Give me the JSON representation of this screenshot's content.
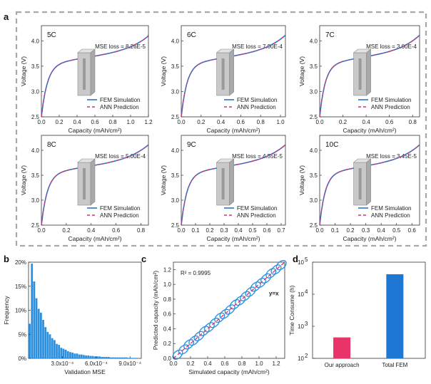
{
  "chart_data": [
    {
      "panel": "a",
      "type": "line",
      "subplots": [
        {
          "title": "5C",
          "xlabel": "Capacity (mAh/cm²)",
          "ylabel": "Voltage (V)",
          "xlim": [
            0,
            1.2
          ],
          "ylim": [
            2.5,
            4.3
          ],
          "xticks": [
            "0.0",
            "0.2",
            "0.4",
            "0.6",
            "0.8",
            "1.0",
            "1.2"
          ],
          "yticks": [
            "2.5",
            "3.0",
            "3.5",
            "4.0"
          ],
          "mse_label": "MSE loss = 8.26E-5",
          "series": [
            {
              "name": "FEM Simulation",
              "color": "#1f77d4",
              "style": "solid"
            },
            {
              "name": "ANN Prediction",
              "color": "#d6336c",
              "style": "dashed"
            }
          ],
          "legend": "bottom-right",
          "cap_max": 1.21
        },
        {
          "title": "6C",
          "xlabel": "Capacity (mAh/cm²)",
          "ylabel": "Voltage (V)",
          "xlim": [
            0,
            1.05
          ],
          "ylim": [
            2.5,
            4.3
          ],
          "xticks": [
            "0.0",
            "0.2",
            "0.4",
            "0.6",
            "0.8",
            "1.0"
          ],
          "yticks": [
            "2.5",
            "3.0",
            "3.5",
            "4.0"
          ],
          "mse_label": "MSE loss = 7.00E-4",
          "series": [
            {
              "name": "FEM Simulation",
              "color": "#1f77d4",
              "style": "solid"
            },
            {
              "name": "ANN Prediction",
              "color": "#d6336c",
              "style": "dashed"
            }
          ],
          "legend": "bottom-right",
          "cap_max": 1.05
        },
        {
          "title": "7C",
          "xlabel": "Capacity (mAh/cm²)",
          "ylabel": "Voltage (V)",
          "xlim": [
            0,
            0.86
          ],
          "ylim": [
            2.5,
            4.3
          ],
          "xticks": [
            "0.0",
            "0.2",
            "0.4",
            "0.6",
            "0.8"
          ],
          "yticks": [
            "2.5",
            "3.0",
            "3.5",
            "4.0"
          ],
          "mse_label": "MSE loss = 3.00E-4",
          "series": [
            {
              "name": "FEM Simulation",
              "color": "#1f77d4",
              "style": "solid"
            },
            {
              "name": "ANN Prediction",
              "color": "#d6336c",
              "style": "dashed"
            }
          ],
          "legend": "bottom-right",
          "cap_max": 0.86
        },
        {
          "title": "8C",
          "xlabel": "Capacity (mAh/cm²)",
          "ylabel": "Voltage (V)",
          "xlim": [
            0,
            0.86
          ],
          "ylim": [
            2.5,
            4.3
          ],
          "xticks": [
            "0.0",
            "0.2",
            "0.4",
            "0.6",
            "0.8"
          ],
          "yticks": [
            "2.5",
            "3.0",
            "3.5",
            "4.0"
          ],
          "mse_label": "MSE loss = 5.00E-4",
          "series": [
            {
              "name": "FEM Simulation",
              "color": "#1f77d4",
              "style": "solid"
            },
            {
              "name": "ANN Prediction",
              "color": "#d6336c",
              "style": "dashed"
            }
          ],
          "legend": "bottom-right",
          "cap_max": 0.86
        },
        {
          "title": "9C",
          "xlabel": "Capacity (mAh/cm²)",
          "ylabel": "Voltage (V)",
          "xlim": [
            0,
            0.73
          ],
          "ylim": [
            2.5,
            4.3
          ],
          "xticks": [
            "0.0",
            "0.1",
            "0.2",
            "0.3",
            "0.4",
            "0.5",
            "0.6",
            "0.7"
          ],
          "yticks": [
            "2.5",
            "3.0",
            "3.5",
            "4.0"
          ],
          "mse_label": "MSE loss = 4.55E-5",
          "series": [
            {
              "name": "FEM Simulation",
              "color": "#1f77d4",
              "style": "solid"
            },
            {
              "name": "ANN Prediction",
              "color": "#d6336c",
              "style": "dashed"
            }
          ],
          "legend": "bottom-right",
          "cap_max": 0.73
        },
        {
          "title": "10C",
          "xlabel": "Capacity (mAh/cm²)",
          "ylabel": "Voltage (V)",
          "xlim": [
            0,
            0.65
          ],
          "ylim": [
            2.5,
            4.3
          ],
          "xticks": [
            "0.0",
            "0.1",
            "0.2",
            "0.3",
            "0.4",
            "0.5",
            "0.6"
          ],
          "yticks": [
            "2.5",
            "3.0",
            "3.5",
            "4.0"
          ],
          "mse_label": "MSE loss = 3.45E-5",
          "series": [
            {
              "name": "FEM Simulation",
              "color": "#1f77d4",
              "style": "solid"
            },
            {
              "name": "ANN Prediction",
              "color": "#d6336c",
              "style": "dashed"
            }
          ],
          "legend": "bottom-right",
          "cap_max": 0.65
        }
      ]
    },
    {
      "panel": "b",
      "type": "bar",
      "xlabel": "Validation MSE",
      "ylabel": "Frequency",
      "xlim": [
        0,
        0.001
      ],
      "ylim": [
        0,
        0.2
      ],
      "xticks": [
        {
          "value": 0.0003,
          "label": "3.0x10⁻⁴"
        },
        {
          "value": 0.0006,
          "label": "6.0x10⁻⁴"
        },
        {
          "value": 0.0009,
          "label": "9.0x10⁻⁴"
        }
      ],
      "yticks": [
        "0%",
        "5%",
        "10%",
        "15%",
        "20%"
      ],
      "bin_width": 2e-05,
      "x_start": 1e-05,
      "values": [
        0.072,
        0.197,
        0.16,
        0.125,
        0.103,
        0.095,
        0.08,
        0.065,
        0.055,
        0.05,
        0.042,
        0.038,
        0.03,
        0.028,
        0.022,
        0.02,
        0.018,
        0.015,
        0.013,
        0.012,
        0.01,
        0.01,
        0.008,
        0.008,
        0.007,
        0.006,
        0.006,
        0.005,
        0.005,
        0.004,
        0.004,
        0.004,
        0.003,
        0.003,
        0.003,
        0.003,
        0.002,
        0.002,
        0.002,
        0.002,
        0.002,
        0.002,
        0.002,
        0.002,
        0.001,
        0.001,
        0.001,
        0.001
      ],
      "color": "#2b8fe0"
    },
    {
      "panel": "c",
      "type": "scatter",
      "xlabel": "Simulated capacity (mAh/cm²)",
      "ylabel": "Predicted capacity (mAh/cm²)",
      "xlim": [
        0,
        1.3
      ],
      "ylim": [
        0,
        1.3
      ],
      "xticks": [
        "0.0",
        "0.2",
        "0.4",
        "0.6",
        "0.8",
        "1.0",
        "1.2"
      ],
      "yticks": [
        "0.0",
        "0.2",
        "0.4",
        "0.6",
        "0.8",
        "1.0",
        "1.2"
      ],
      "r2_label": "R² = 0.9995",
      "line_label": "y=x",
      "line_color": "#d6336c",
      "point_color": "#2b8fe0",
      "points": [
        [
          0.05,
          0.05
        ],
        [
          0.12,
          0.12
        ],
        [
          0.18,
          0.19
        ],
        [
          0.24,
          0.24
        ],
        [
          0.3,
          0.3
        ],
        [
          0.36,
          0.37
        ],
        [
          0.42,
          0.42
        ],
        [
          0.48,
          0.48
        ],
        [
          0.54,
          0.55
        ],
        [
          0.6,
          0.6
        ],
        [
          0.66,
          0.66
        ],
        [
          0.72,
          0.73
        ],
        [
          0.78,
          0.78
        ],
        [
          0.84,
          0.84
        ],
        [
          0.9,
          0.9
        ],
        [
          0.96,
          0.97
        ],
        [
          1.02,
          1.02
        ],
        [
          1.08,
          1.08
        ],
        [
          1.14,
          1.15
        ],
        [
          1.2,
          1.2
        ],
        [
          1.26,
          1.26
        ]
      ]
    },
    {
      "panel": "d",
      "type": "bar",
      "ylabel": "Time Consume (h)",
      "yscale": "log",
      "ylim": [
        100,
        100000
      ],
      "ytick_exponents": [
        2,
        3,
        4,
        5
      ],
      "categories": [
        "Our approach",
        "Total FEM"
      ],
      "values": [
        450,
        42000
      ],
      "colors": [
        "#e8336b",
        "#1f77d4"
      ]
    }
  ]
}
